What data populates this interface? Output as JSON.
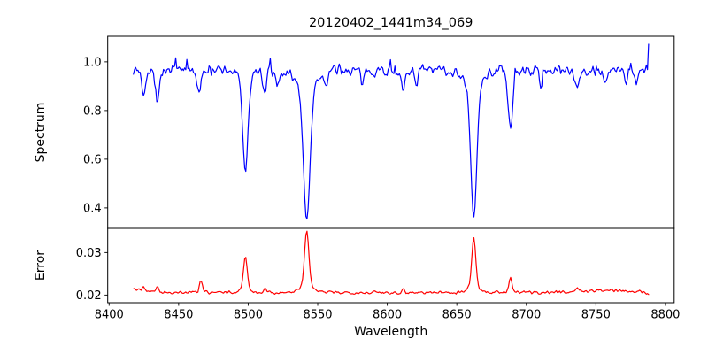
{
  "page": {
    "background": "#ffffff",
    "axis_color": "#000000"
  },
  "chart_data": {
    "type": "line",
    "title": "20120402_1441m34_069",
    "xlabel": "Wavelength",
    "grid": false,
    "legend": null,
    "xlim": [
      8399.0,
      8806.3
    ],
    "xticks": [
      8400,
      8450,
      8500,
      8550,
      8600,
      8650,
      8700,
      8750,
      8800
    ],
    "xtick_labels": [
      "8400",
      "8450",
      "8500",
      "8550",
      "8600",
      "8650",
      "8700",
      "8750",
      "8800"
    ],
    "x_start": 8417.5,
    "x_end": 8787.5,
    "x_step": 0.8,
    "seed": 7,
    "subplots": [
      {
        "name": "spectrum",
        "ylabel": "Spectrum",
        "line_color": "#0000ff",
        "ylim": [
          0.316,
          1.105
        ],
        "yticks": [
          0.4,
          0.6,
          0.8,
          1.0
        ],
        "ytick_labels": [
          "0.4",
          "0.6",
          "0.8",
          "1.0"
        ],
        "continuum": 0.965,
        "noise_amp": 0.028,
        "noise_damping": 2.2,
        "spike_prob": 0.025,
        "spike_amp": 0.03,
        "end_spike": 0.1,
        "absorption_lines": [
          {
            "center": 8424.8,
            "depth": 0.095,
            "sigma": 1.2
          },
          {
            "center": 8434.6,
            "depth": 0.12,
            "sigma": 1.5
          },
          {
            "center": 8464.8,
            "depth": 0.1,
            "sigma": 1.3
          },
          {
            "center": 8498.0,
            "depth": 0.36,
            "sigma": 1.8
          },
          {
            "center": 8498.0,
            "depth": 0.055,
            "sigma": 4.0
          },
          {
            "center": 8511.8,
            "depth": 0.1,
            "sigma": 1.3
          },
          {
            "center": 8521.0,
            "depth": 0.06,
            "sigma": 1.5
          },
          {
            "center": 8542.1,
            "depth": 0.52,
            "sigma": 2.3
          },
          {
            "center": 8542.1,
            "depth": 0.092,
            "sigma": 6.5
          },
          {
            "center": 8556.0,
            "depth": 0.05,
            "sigma": 1.1
          },
          {
            "center": 8582.3,
            "depth": 0.065,
            "sigma": 1.2
          },
          {
            "center": 8611.5,
            "depth": 0.09,
            "sigma": 1.4
          },
          {
            "center": 8621.0,
            "depth": 0.05,
            "sigma": 1.0
          },
          {
            "center": 8662.2,
            "depth": 0.52,
            "sigma": 2.1
          },
          {
            "center": 8662.2,
            "depth": 0.085,
            "sigma": 5.5
          },
          {
            "center": 8688.6,
            "depth": 0.24,
            "sigma": 1.7
          },
          {
            "center": 8710.5,
            "depth": 0.055,
            "sigma": 1.2
          },
          {
            "center": 8736.5,
            "depth": 0.07,
            "sigma": 1.3
          },
          {
            "center": 8757.0,
            "depth": 0.065,
            "sigma": 1.2
          },
          {
            "center": 8771.5,
            "depth": 0.055,
            "sigma": 1.1
          },
          {
            "center": 8779.0,
            "depth": 0.05,
            "sigma": 1.0
          }
        ]
      },
      {
        "name": "error",
        "ylabel": "Error",
        "line_color": "#ff0000",
        "ylim": [
          0.0182,
          0.0357
        ],
        "yticks": [
          0.02,
          0.03
        ],
        "ytick_labels": [
          "0.02",
          "0.03"
        ],
        "baseline": 0.0206,
        "noise_amp": 0.00045,
        "end_drop": 0.0005,
        "peaks": [
          {
            "center": 8420.0,
            "height": 0.0007,
            "sigma": 6.0
          },
          {
            "center": 8424.8,
            "height": 0.0009,
            "sigma": 1.0
          },
          {
            "center": 8434.6,
            "height": 0.0012,
            "sigma": 1.1
          },
          {
            "center": 8466.0,
            "height": 0.0028,
            "sigma": 1.1
          },
          {
            "center": 8498.0,
            "height": 0.0073,
            "sigma": 1.3
          },
          {
            "center": 8498.0,
            "height": 0.0012,
            "sigma": 3.0
          },
          {
            "center": 8511.8,
            "height": 0.001,
            "sigma": 1.0
          },
          {
            "center": 8542.1,
            "height": 0.0128,
            "sigma": 1.5
          },
          {
            "center": 8542.1,
            "height": 0.0018,
            "sigma": 4.5
          },
          {
            "center": 8611.5,
            "height": 0.0007,
            "sigma": 1.0
          },
          {
            "center": 8662.2,
            "height": 0.0113,
            "sigma": 1.4
          },
          {
            "center": 8662.2,
            "height": 0.0016,
            "sigma": 4.0
          },
          {
            "center": 8688.6,
            "height": 0.0036,
            "sigma": 1.1
          },
          {
            "center": 8736.5,
            "height": 0.0007,
            "sigma": 1.2
          },
          {
            "center": 8760.0,
            "height": 0.0005,
            "sigma": 20.0
          }
        ]
      }
    ]
  }
}
